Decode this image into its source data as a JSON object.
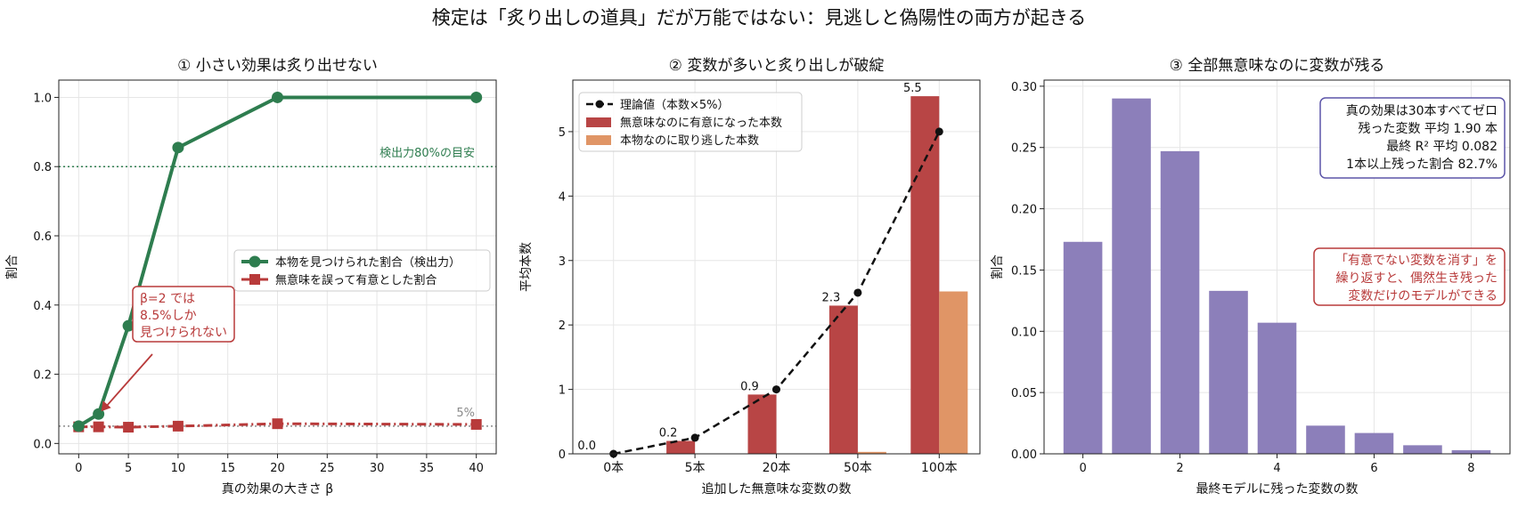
{
  "suptitle": "検定は「炙り出しの道具」だが万能ではない：見逃しと偽陽性の両方が起きる",
  "colors": {
    "power": "#2e7d4f",
    "fpr": "#b83a3a",
    "ref_green": "#2e7d4f",
    "ref_gray": "#8a8a8a",
    "theory": "#111111",
    "noise_bar": "#b84545",
    "missed_bar": "#e09566",
    "panel3_bar": "#8c7fba",
    "box3_edge": "#5c55a8",
    "box3_text": "#111111",
    "note3": "#b83a3a",
    "grid": "#e6e6e6",
    "axis": "#222222"
  },
  "chart_data": [
    {
      "type": "line",
      "title": "① 小さい効果は炙り出せない",
      "xlabel": "真の効果の大きさ β",
      "ylabel": "割合",
      "xlim": [
        -2,
        42
      ],
      "ylim": [
        -0.03,
        1.05
      ],
      "xticks": [
        0,
        5,
        10,
        15,
        20,
        25,
        30,
        35,
        40
      ],
      "yticks": [
        0.0,
        0.2,
        0.4,
        0.6,
        0.8,
        1.0
      ],
      "ytick_labels": [
        "0.0",
        "0.2",
        "0.4",
        "0.6",
        "0.8",
        "1.0"
      ],
      "grid": true,
      "series": [
        {
          "name": "本物を見つけられた割合（検出力）",
          "x": [
            0,
            2,
            5,
            10,
            20,
            40
          ],
          "y": [
            0.05,
            0.085,
            0.34,
            0.855,
            1.0,
            1.0
          ],
          "marker": "circle",
          "style": "solid"
        },
        {
          "name": "無意味を誤って有意とした割合",
          "x": [
            0,
            2,
            5,
            10,
            20,
            40
          ],
          "y": [
            0.048,
            0.048,
            0.047,
            0.05,
            0.057,
            0.055
          ],
          "marker": "square",
          "style": "dashdot"
        }
      ],
      "hlines": [
        {
          "y": 0.8,
          "label": "検出力80%の目安",
          "color_key": "ref_green"
        },
        {
          "y": 0.05,
          "label": "5%",
          "color_key": "ref_gray"
        }
      ],
      "annotation": {
        "lines": [
          "β=2 では",
          "8.5%しか",
          "見つけられない"
        ],
        "arrow_to": [
          2,
          0.085
        ]
      },
      "legend": "center-right"
    },
    {
      "type": "bar",
      "title": "② 変数が多いと炙り出しが破綻",
      "xlabel": "追加した無意味な変数の数",
      "ylabel": "平均本数",
      "categories": [
        "0本",
        "5本",
        "20本",
        "50本",
        "100本"
      ],
      "ylim": [
        0,
        5.8
      ],
      "yticks": [
        0,
        1,
        2,
        3,
        4,
        5
      ],
      "ytick_labels": [
        "0",
        "1",
        "2",
        "3",
        "4",
        "5"
      ],
      "grid": true,
      "series": [
        {
          "name": "無意味なのに有意になった本数",
          "values": [
            0.0,
            0.2,
            0.92,
            2.3,
            5.55
          ]
        },
        {
          "name": "本物なのに取り逃した本数",
          "values": [
            0.0,
            0.0,
            0.0,
            0.03,
            2.52
          ]
        }
      ],
      "line": {
        "name": "理論値（本数×5%）",
        "values": [
          0.0,
          0.25,
          1.0,
          2.5,
          5.0
        ]
      },
      "data_labels": [
        "0.0",
        "0.2",
        "0.9",
        "2.3",
        "5.5"
      ],
      "legend": "top-left"
    },
    {
      "type": "bar",
      "title": "③ 全部無意味なのに変数が残る",
      "xlabel": "最終モデルに残った変数の数",
      "ylabel": "割合",
      "x": [
        0,
        1,
        2,
        3,
        4,
        5,
        6,
        7,
        8
      ],
      "values": [
        0.173,
        0.29,
        0.247,
        0.133,
        0.107,
        0.023,
        0.017,
        0.007,
        0.003
      ],
      "xlim": [
        -0.8,
        8.8
      ],
      "ylim": [
        0,
        0.305
      ],
      "xticks": [
        0,
        2,
        4,
        6,
        8
      ],
      "yticks": [
        0.0,
        0.05,
        0.1,
        0.15,
        0.2,
        0.25,
        0.3
      ],
      "ytick_labels": [
        "0.00",
        "0.05",
        "0.10",
        "0.15",
        "0.20",
        "0.25",
        "0.30"
      ],
      "grid": true,
      "info_box": [
        "真の効果は30本すべてゼロ",
        "残った変数 平均 1.90 本",
        "最終 R² 平均 0.082",
        "1本以上残った割合 82.7%"
      ],
      "note_box": [
        "「有意でない変数を消す」を",
        "繰り返すと、偶然生き残った",
        "変数だけのモデルができる"
      ]
    }
  ]
}
